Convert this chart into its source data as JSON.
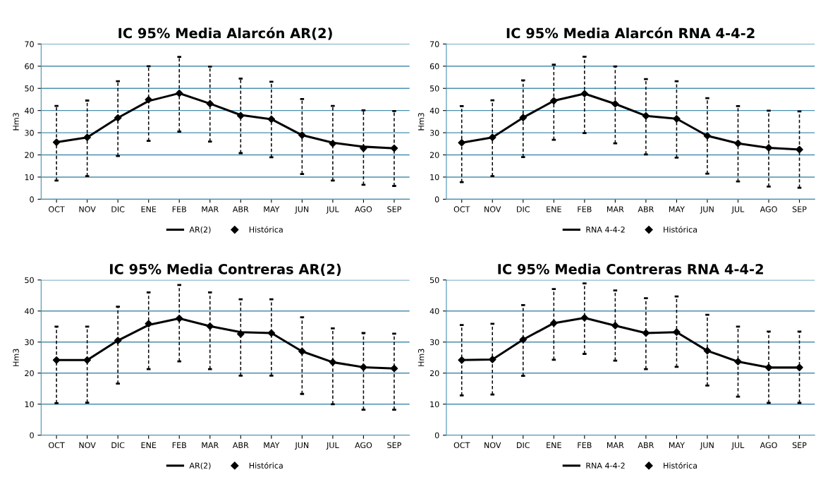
{
  "chart_data": [
    {
      "type": "line",
      "title": "IC 95% Media Alarcón AR(2)",
      "ylabel": "Hm3",
      "categories": [
        "OCT",
        "NOV",
        "DIC",
        "ENE",
        "FEB",
        "MAR",
        "ABR",
        "MAY",
        "JUN",
        "JUL",
        "AGO",
        "SEP"
      ],
      "ylim": [
        0,
        70
      ],
      "yticks": [
        0,
        10,
        20,
        30,
        40,
        50,
        60,
        70
      ],
      "grid": "y",
      "legend": "bottom",
      "series": [
        {
          "name": "AR(2)",
          "color": "#000000",
          "marker": "none",
          "line_style": "solid",
          "values": [
            25.7,
            27.9,
            36.7,
            44.3,
            47.8,
            43.1,
            38.0,
            36.1,
            28.9,
            25.5,
            23.7,
            23.0
          ],
          "errors": [
            [
              8.4,
              42.1
            ],
            [
              10.4,
              44.5
            ],
            [
              19.5,
              53.2
            ],
            [
              26.3,
              60.0
            ],
            [
              30.5,
              64.2
            ],
            [
              26.0,
              59.8
            ],
            [
              20.8,
              54.4
            ],
            [
              18.9,
              53.0
            ],
            [
              11.4,
              45.2
            ],
            [
              8.4,
              42.1
            ],
            [
              6.5,
              40.1
            ],
            [
              6.0,
              39.8
            ]
          ]
        },
        {
          "name": "Histórica",
          "type": "scatter",
          "color": "#000000",
          "marker": "diamond",
          "values": [
            25.7,
            27.9,
            36.7,
            44.9,
            47.8,
            43.1,
            37.7,
            36.1,
            28.9,
            25.1,
            23.0,
            23.0
          ]
        }
      ]
    },
    {
      "type": "line",
      "title": "IC 95% Media Alarcón RNA 4-4-2",
      "ylabel": "Hm3",
      "categories": [
        "OCT",
        "NOV",
        "DIC",
        "ENE",
        "FEB",
        "MAR",
        "ABR",
        "MAY",
        "JUN",
        "JUL",
        "AGO",
        "SEP"
      ],
      "ylim": [
        0,
        70
      ],
      "yticks": [
        0,
        10,
        20,
        30,
        40,
        50,
        60,
        70
      ],
      "grid": "y",
      "legend": "bottom",
      "series": [
        {
          "name": "RNA 4-4-2",
          "color": "#000000",
          "marker": "none",
          "line_style": "solid",
          "values": [
            25.5,
            27.9,
            36.8,
            44.4,
            47.6,
            43.0,
            37.6,
            36.3,
            28.6,
            25.2,
            23.2,
            22.4
          ],
          "errors": [
            [
              7.7,
              42.0
            ],
            [
              10.4,
              44.6
            ],
            [
              19.0,
              53.6
            ],
            [
              26.8,
              60.7
            ],
            [
              29.8,
              64.3
            ],
            [
              25.2,
              59.9
            ],
            [
              20.2,
              54.2
            ],
            [
              18.8,
              53.2
            ],
            [
              11.5,
              45.6
            ],
            [
              8.0,
              42.0
            ],
            [
              5.7,
              39.9
            ],
            [
              5.2,
              39.6
            ]
          ]
        },
        {
          "name": "Histórica",
          "type": "scatter",
          "color": "#000000",
          "marker": "diamond",
          "values": [
            25.5,
            27.9,
            36.8,
            44.4,
            47.6,
            43.0,
            37.6,
            36.3,
            28.6,
            25.2,
            23.2,
            22.4
          ]
        }
      ]
    },
    {
      "type": "line",
      "title": "IC 95% Media Contreras AR(2)",
      "ylabel": "Hm3",
      "categories": [
        "OCT",
        "NOV",
        "DIC",
        "ENE",
        "FEB",
        "MAR",
        "ABR",
        "MAY",
        "JUN",
        "JUL",
        "AGO",
        "SEP"
      ],
      "ylim": [
        0,
        50
      ],
      "yticks": [
        0,
        10,
        20,
        30,
        40,
        50
      ],
      "grid": "y",
      "legend": "bottom",
      "series": [
        {
          "name": "AR(2)",
          "color": "#000000",
          "marker": "none",
          "line_style": "solid",
          "values": [
            24.2,
            24.2,
            30.5,
            35.5,
            37.6,
            35.1,
            33.2,
            32.9,
            27.0,
            23.5,
            21.9,
            21.5
          ],
          "errors": [
            [
              10.3,
              35.0
            ],
            [
              10.5,
              35.0
            ],
            [
              16.6,
              41.4
            ],
            [
              21.3,
              46.0
            ],
            [
              23.8,
              48.4
            ],
            [
              21.3,
              46.0
            ],
            [
              19.2,
              43.8
            ],
            [
              19.2,
              43.8
            ],
            [
              13.3,
              38.0
            ],
            [
              10.0,
              34.4
            ],
            [
              8.2,
              32.9
            ],
            [
              8.2,
              32.7
            ]
          ]
        },
        {
          "name": "Histórica",
          "type": "scatter",
          "color": "#000000",
          "marker": "diamond",
          "values": [
            24.2,
            24.2,
            30.5,
            35.9,
            37.6,
            35.1,
            32.6,
            32.9,
            27.0,
            23.5,
            21.9,
            21.5
          ]
        }
      ]
    },
    {
      "type": "line",
      "title": "IC 95% Media Contreras RNA 4-4-2",
      "ylabel": "Hm3",
      "categories": [
        "OCT",
        "NOV",
        "DIC",
        "ENE",
        "FEB",
        "MAR",
        "ABR",
        "MAY",
        "JUN",
        "JUL",
        "AGO",
        "SEP"
      ],
      "ylim": [
        0,
        50
      ],
      "yticks": [
        0,
        10,
        20,
        30,
        40,
        50
      ],
      "grid": "y",
      "legend": "bottom",
      "series": [
        {
          "name": "RNA 4-4-2",
          "color": "#000000",
          "marker": "none",
          "line_style": "solid",
          "values": [
            24.2,
            24.4,
            30.8,
            36.1,
            37.8,
            35.3,
            32.9,
            33.2,
            27.2,
            23.7,
            21.8,
            21.8
          ],
          "errors": [
            [
              12.8,
              35.5
            ],
            [
              13.1,
              35.9
            ],
            [
              19.1,
              41.9
            ],
            [
              24.3,
              47.1
            ],
            [
              26.2,
              48.9
            ],
            [
              24.0,
              46.6
            ],
            [
              21.3,
              44.1
            ],
            [
              22.0,
              44.7
            ],
            [
              16.0,
              38.8
            ],
            [
              12.4,
              35.0
            ],
            [
              10.4,
              33.4
            ],
            [
              10.4,
              33.4
            ]
          ]
        },
        {
          "name": "Histórica",
          "type": "scatter",
          "color": "#000000",
          "marker": "diamond",
          "values": [
            24.2,
            24.4,
            30.8,
            36.1,
            37.8,
            35.3,
            32.9,
            33.2,
            27.2,
            23.7,
            21.8,
            21.8
          ]
        }
      ]
    }
  ]
}
